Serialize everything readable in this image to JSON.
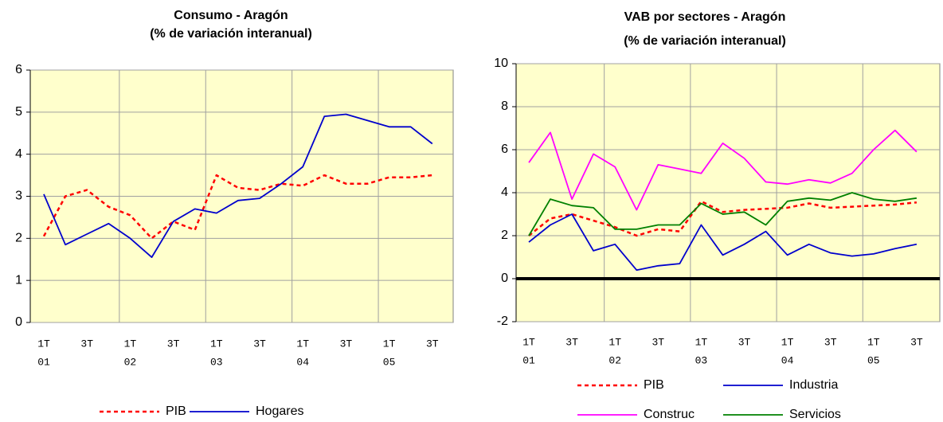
{
  "chart_data": [
    {
      "type": "line",
      "title": "Consumo - Aragón",
      "subtitle": "(% de variación interanual)",
      "categories": [
        "1T",
        null,
        "3T",
        null,
        "1T",
        null,
        "3T",
        null,
        "1T",
        null,
        "3T",
        null,
        "1T",
        null,
        "3T",
        null,
        "1T",
        null,
        "3T"
      ],
      "year_labels": [
        "01",
        "02",
        "03",
        "04",
        "05"
      ],
      "ylim": [
        0,
        6
      ],
      "yticks": [
        0,
        1,
        2,
        3,
        4,
        5,
        6
      ],
      "grid": true,
      "series": [
        {
          "name": "PIB",
          "color": "#ff0000",
          "dashed": true,
          "values": [
            2.05,
            3.0,
            3.15,
            2.75,
            2.55,
            2.0,
            2.4,
            2.2,
            3.5,
            3.2,
            3.15,
            3.3,
            3.25,
            3.5,
            3.3,
            3.3,
            3.45,
            3.45,
            3.5
          ]
        },
        {
          "name": "Hogares",
          "color": "#0000cc",
          "dashed": false,
          "values": [
            3.05,
            1.85,
            2.1,
            2.35,
            2.0,
            1.55,
            2.4,
            2.7,
            2.6,
            2.9,
            2.95,
            3.3,
            3.7,
            4.9,
            4.95,
            4.8,
            4.65,
            4.65,
            4.25
          ]
        }
      ]
    },
    {
      "type": "line",
      "title": "VAB por sectores - Aragón",
      "subtitle": "(% de variación interanual)",
      "categories": [
        "1T",
        null,
        "3T",
        null,
        "1T",
        null,
        "3T",
        null,
        "1T",
        null,
        "3T",
        null,
        "1T",
        null,
        "3T",
        null,
        "1T",
        null,
        "3T"
      ],
      "year_labels": [
        "01",
        "02",
        "03",
        "04",
        "05"
      ],
      "ylim": [
        -2,
        10
      ],
      "yticks": [
        -2,
        0,
        2,
        4,
        6,
        8,
        10
      ],
      "grid": true,
      "zero_line": true,
      "series": [
        {
          "name": "PIB",
          "color": "#ff0000",
          "dashed": true,
          "values": [
            2.0,
            2.8,
            3.0,
            2.7,
            2.4,
            2.0,
            2.3,
            2.2,
            3.6,
            3.1,
            3.2,
            3.25,
            3.3,
            3.5,
            3.3,
            3.35,
            3.4,
            3.45,
            3.55
          ]
        },
        {
          "name": "Industria",
          "color": "#0000cc",
          "dashed": false,
          "values": [
            1.7,
            2.5,
            3.0,
            1.3,
            1.6,
            0.4,
            0.6,
            0.7,
            2.5,
            1.1,
            1.6,
            2.2,
            1.1,
            1.6,
            1.2,
            1.05,
            1.15,
            1.4,
            1.6
          ]
        },
        {
          "name": "Construc",
          "color": "#ff00ff",
          "dashed": false,
          "values": [
            5.4,
            6.8,
            3.7,
            5.8,
            5.2,
            3.2,
            5.3,
            5.1,
            4.9,
            6.3,
            5.6,
            4.5,
            4.4,
            4.6,
            4.45,
            4.9,
            6.0,
            6.9,
            5.9
          ]
        },
        {
          "name": "Servicios",
          "color": "#008000",
          "dashed": false,
          "values": [
            2.0,
            3.7,
            3.4,
            3.3,
            2.3,
            2.3,
            2.5,
            2.5,
            3.5,
            3.0,
            3.1,
            2.5,
            3.6,
            3.75,
            3.65,
            4.0,
            3.7,
            3.6,
            3.75
          ]
        }
      ]
    }
  ]
}
